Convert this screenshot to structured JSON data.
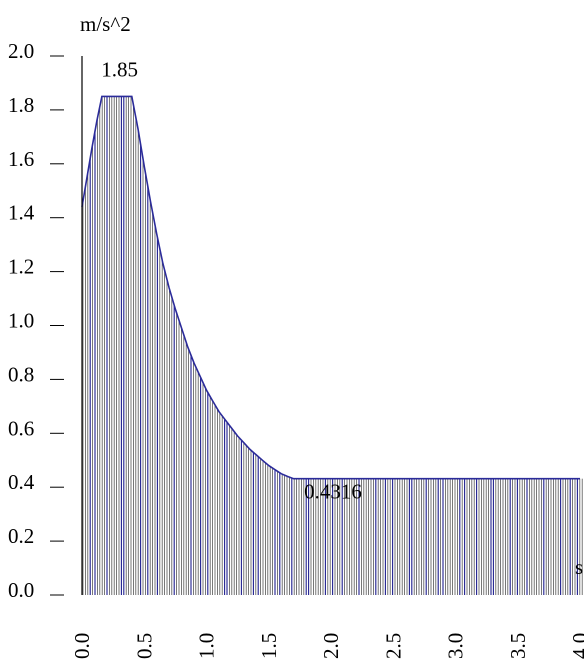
{
  "chart_data": {
    "type": "area",
    "ylabel": "m/s^2",
    "xlabel": "s",
    "xlim": [
      0.0,
      4.0
    ],
    "ylim": [
      0.0,
      2.0
    ],
    "x_ticks": [
      "0.0",
      "0.5",
      "1.0",
      "1.5",
      "2.0",
      "2.5",
      "3.0",
      "3.5",
      "4.0"
    ],
    "y_ticks": [
      "0.0",
      "0.2",
      "0.4",
      "0.6",
      "0.8",
      "1.0",
      "1.2",
      "1.4",
      "1.6",
      "1.8",
      "2.0"
    ],
    "series": [
      {
        "x": [
          0.0,
          0.04,
          0.08,
          0.12,
          0.16,
          0.2,
          0.24,
          0.28,
          0.32,
          0.36,
          0.4,
          0.45,
          0.5,
          0.55,
          0.6,
          0.65,
          0.7,
          0.75,
          0.8,
          0.85,
          0.9,
          0.95,
          1.0,
          1.05,
          1.1,
          1.15,
          1.2,
          1.25,
          1.3,
          1.35,
          1.4,
          1.45,
          1.5,
          1.55,
          1.6,
          1.65,
          1.7,
          1.75,
          1.8,
          1.9,
          2.0,
          2.5,
          3.0,
          3.5,
          4.0
        ],
        "values": [
          1.44,
          1.55,
          1.66,
          1.76,
          1.85,
          1.85,
          1.85,
          1.85,
          1.85,
          1.85,
          1.85,
          1.73,
          1.59,
          1.46,
          1.34,
          1.23,
          1.14,
          1.06,
          0.99,
          0.92,
          0.86,
          0.81,
          0.76,
          0.72,
          0.68,
          0.65,
          0.62,
          0.59,
          0.565,
          0.54,
          0.52,
          0.5,
          0.48,
          0.465,
          0.45,
          0.44,
          0.4316,
          0.4316,
          0.4316,
          0.4316,
          0.4316,
          0.4316,
          0.4316,
          0.4316,
          0.4316
        ]
      }
    ],
    "annotations": [
      {
        "text": "1.85",
        "x": 0.3,
        "y": 1.85
      },
      {
        "text": "0.4316",
        "x": 1.8,
        "y": 0.4316
      }
    ],
    "colors": {
      "line": "#2b2b9a",
      "fill_stroke": "#555555",
      "fill_accent": "#1f1f8f"
    }
  }
}
